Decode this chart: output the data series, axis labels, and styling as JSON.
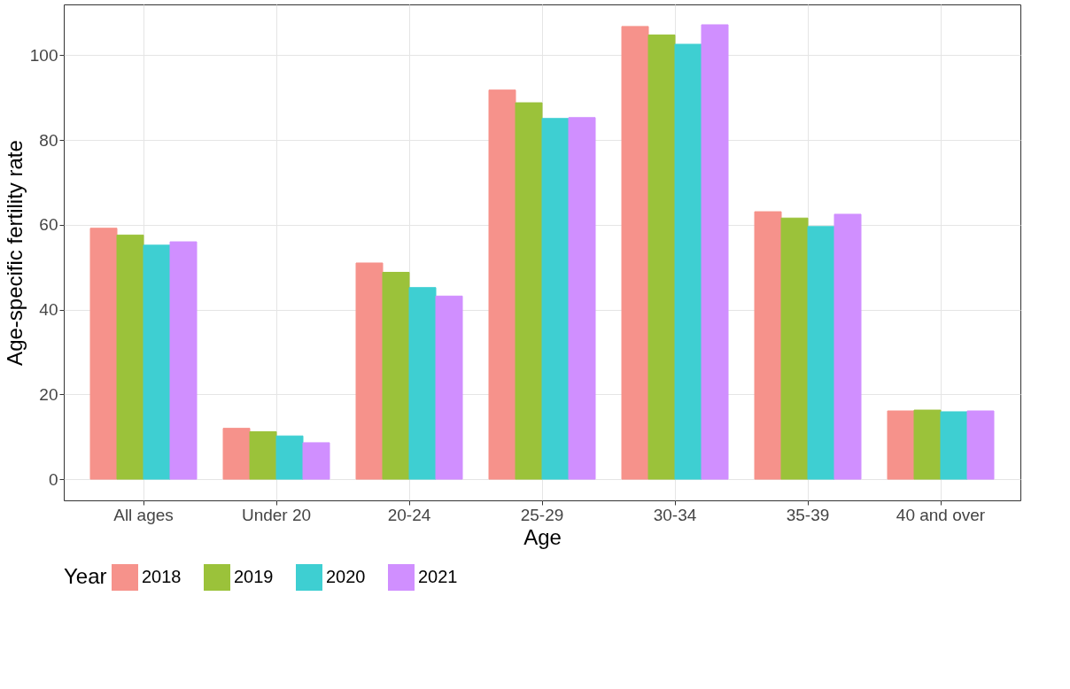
{
  "chart_data": {
    "type": "bar",
    "xlabel": "Age",
    "ylabel": "Age-specific fertility rate",
    "legend_title": "Year",
    "categories": [
      "All ages",
      "Under 20",
      "20-24",
      "25-29",
      "30-34",
      "35-39",
      "40 and over"
    ],
    "series": [
      {
        "name": "2018",
        "color": "#f6928b",
        "values": [
          59.2,
          12.0,
          51.0,
          91.8,
          106.8,
          63.1,
          16.1
        ]
      },
      {
        "name": "2019",
        "color": "#9bc23a",
        "values": [
          57.6,
          11.2,
          48.8,
          88.8,
          104.8,
          61.6,
          16.3
        ]
      },
      {
        "name": "2020",
        "color": "#3ecfd2",
        "values": [
          55.2,
          10.2,
          45.2,
          85.1,
          102.6,
          59.6,
          15.9
        ]
      },
      {
        "name": "2021",
        "color": "#d08fff",
        "values": [
          56.0,
          8.6,
          43.2,
          85.3,
          107.2,
          62.5,
          16.1
        ]
      }
    ],
    "ylim": [
      -5,
      112
    ],
    "yticks": [
      0,
      20,
      40,
      60,
      80,
      100
    ],
    "grid": true,
    "legend": "bottom"
  }
}
